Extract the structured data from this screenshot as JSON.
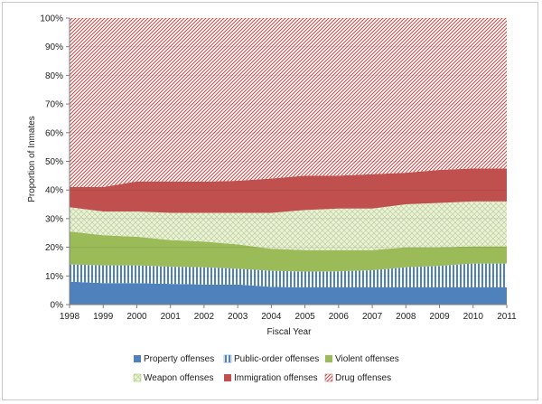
{
  "chart_data": {
    "type": "area",
    "stacked": true,
    "percent": true,
    "title": "",
    "xlabel": "Fiscal Year",
    "ylabel": "Proportion of Inmates",
    "ylim": [
      0,
      100
    ],
    "y_ticks": [
      "0%",
      "10%",
      "20%",
      "30%",
      "40%",
      "50%",
      "60%",
      "70%",
      "80%",
      "90%",
      "100%"
    ],
    "x": [
      "1998",
      "1999",
      "2000",
      "2001",
      "2002",
      "2003",
      "2004",
      "2005",
      "2006",
      "2007",
      "2008",
      "2009",
      "2010",
      "2011"
    ],
    "legend_position": "bottom",
    "series": [
      {
        "name": "Property offenses",
        "color": "#4f81bd",
        "pattern": "solid",
        "values": [
          8,
          7.5,
          7.5,
          7.2,
          7,
          7,
          6.2,
          6,
          6,
          6,
          6,
          6,
          6,
          6
        ]
      },
      {
        "name": "Public-order offenses",
        "color": "#4f81bd",
        "pattern": "vertical",
        "values": [
          6,
          6.2,
          6.2,
          6,
          6,
          5.5,
          5.6,
          5.5,
          5.6,
          6,
          7,
          7.5,
          8.3,
          8.3
        ]
      },
      {
        "name": "Violent offenses",
        "color": "#9bbb59",
        "pattern": "solid",
        "values": [
          11.5,
          10.5,
          10,
          9.3,
          9,
          8.5,
          7.7,
          7.5,
          7.4,
          7,
          7,
          6.5,
          6,
          6
        ]
      },
      {
        "name": "Weapon offenses",
        "color": "#9bbb59",
        "pattern": "checker",
        "values": [
          8.5,
          8.3,
          8.8,
          9.5,
          10,
          11,
          12.5,
          14,
          14.5,
          14.5,
          15,
          15.5,
          15.7,
          15.7
        ]
      },
      {
        "name": "Immigration offenses",
        "color": "#c0504d",
        "pattern": "solid",
        "values": [
          7,
          8.5,
          10.5,
          11,
          10.9,
          11.2,
          12,
          12,
          11.5,
          12,
          11,
          11.5,
          11.5,
          11.5
        ]
      },
      {
        "name": "Drug offenses",
        "color": "#c0504d",
        "pattern": "diagonal",
        "values": [
          59,
          59,
          57,
          57,
          57.1,
          56.8,
          56,
          55,
          55,
          54.5,
          54,
          53,
          52.5,
          52.5
        ]
      }
    ]
  }
}
